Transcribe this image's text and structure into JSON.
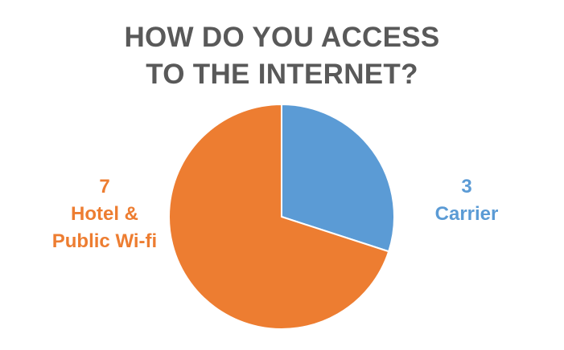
{
  "chart_data": {
    "type": "pie",
    "title_lines": [
      "HOW DO YOU ACCESS",
      "TO THE INTERNET?"
    ],
    "slices": [
      {
        "value": 3,
        "label_value": "3",
        "label_lines": [
          "Carrier"
        ],
        "color": "#5b9bd5"
      },
      {
        "value": 7,
        "label_value": "7",
        "label_lines": [
          "Hotel &",
          "Public Wi-fi"
        ],
        "color": "#ed7d31"
      }
    ]
  }
}
